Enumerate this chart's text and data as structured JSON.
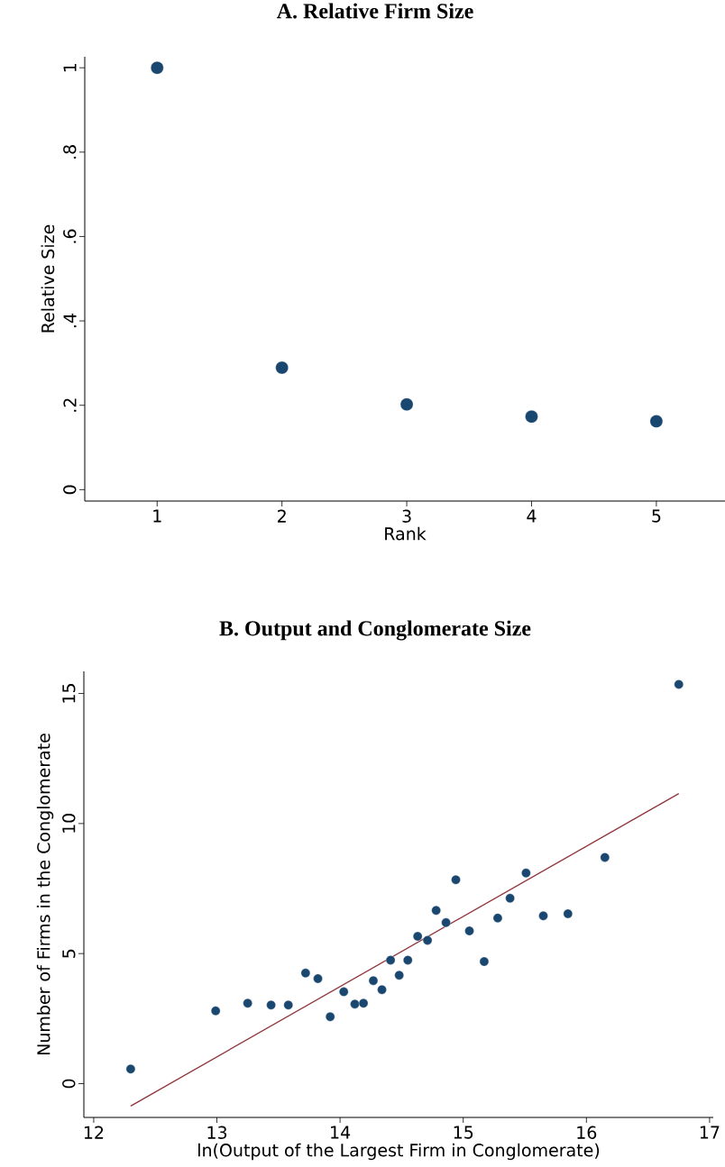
{
  "chart_data": [
    {
      "type": "scatter",
      "title": "A. Relative Firm Size",
      "xlabel": "Rank",
      "ylabel": "Relative Size",
      "x": [
        1,
        2,
        3,
        4,
        5
      ],
      "values": [
        1.0,
        0.289,
        0.202,
        0.173,
        0.162
      ],
      "color": "#1a476f",
      "marker": "circle",
      "xlim": [
        0.42,
        5.55
      ],
      "xticks": [
        1,
        2,
        3,
        4,
        5
      ],
      "ylim": [
        -0.027,
        1.026
      ],
      "yticks": [
        0,
        {
          "value": 0.2,
          "label": ".2"
        },
        {
          "value": 0.4,
          "label": ".4"
        },
        {
          "value": 0.6,
          "label": ".6"
        },
        {
          "value": 0.8,
          "label": ".8"
        },
        1
      ],
      "grid": false
    },
    {
      "type": "scatter",
      "title": "B. Output and Conglomerate Size",
      "xlabel": "ln(Output of the Largest Firm in Conglomerate)",
      "ylabel": "Number of Firms in the Conglomerate",
      "series": [
        {
          "type": "scatter",
          "color": "#1a476f",
          "marker": "circle",
          "x": [
            12.3,
            12.99,
            13.25,
            13.44,
            13.58,
            13.72,
            13.82,
            13.92,
            14.03,
            14.12,
            14.19,
            14.27,
            14.34,
            14.41,
            14.48,
            14.55,
            14.63,
            14.71,
            14.78,
            14.86,
            14.94,
            15.05,
            15.17,
            15.28,
            15.38,
            15.51,
            15.65,
            15.85,
            16.15,
            16.75
          ],
          "values": [
            0.56,
            2.8,
            3.09,
            3.02,
            3.02,
            4.25,
            4.04,
            2.57,
            3.53,
            3.06,
            3.09,
            3.96,
            3.61,
            4.75,
            4.17,
            4.75,
            5.66,
            5.51,
            6.66,
            6.19,
            7.84,
            5.87,
            4.69,
            6.37,
            7.13,
            8.1,
            6.45,
            6.53,
            8.7,
            15.35
          ]
        },
        {
          "type": "line",
          "color": "#90353b",
          "marker": "none",
          "line_style": "solid",
          "x": [
            12.3,
            16.75
          ],
          "values": [
            -0.86,
            11.15
          ]
        }
      ],
      "xlim": [
        11.92,
        17.03
      ],
      "xticks": [
        12,
        13,
        14,
        15,
        16,
        17
      ],
      "ylim": [
        -1.3,
        15.85
      ],
      "yticks": [
        0,
        5,
        10,
        15
      ],
      "grid": false
    }
  ]
}
